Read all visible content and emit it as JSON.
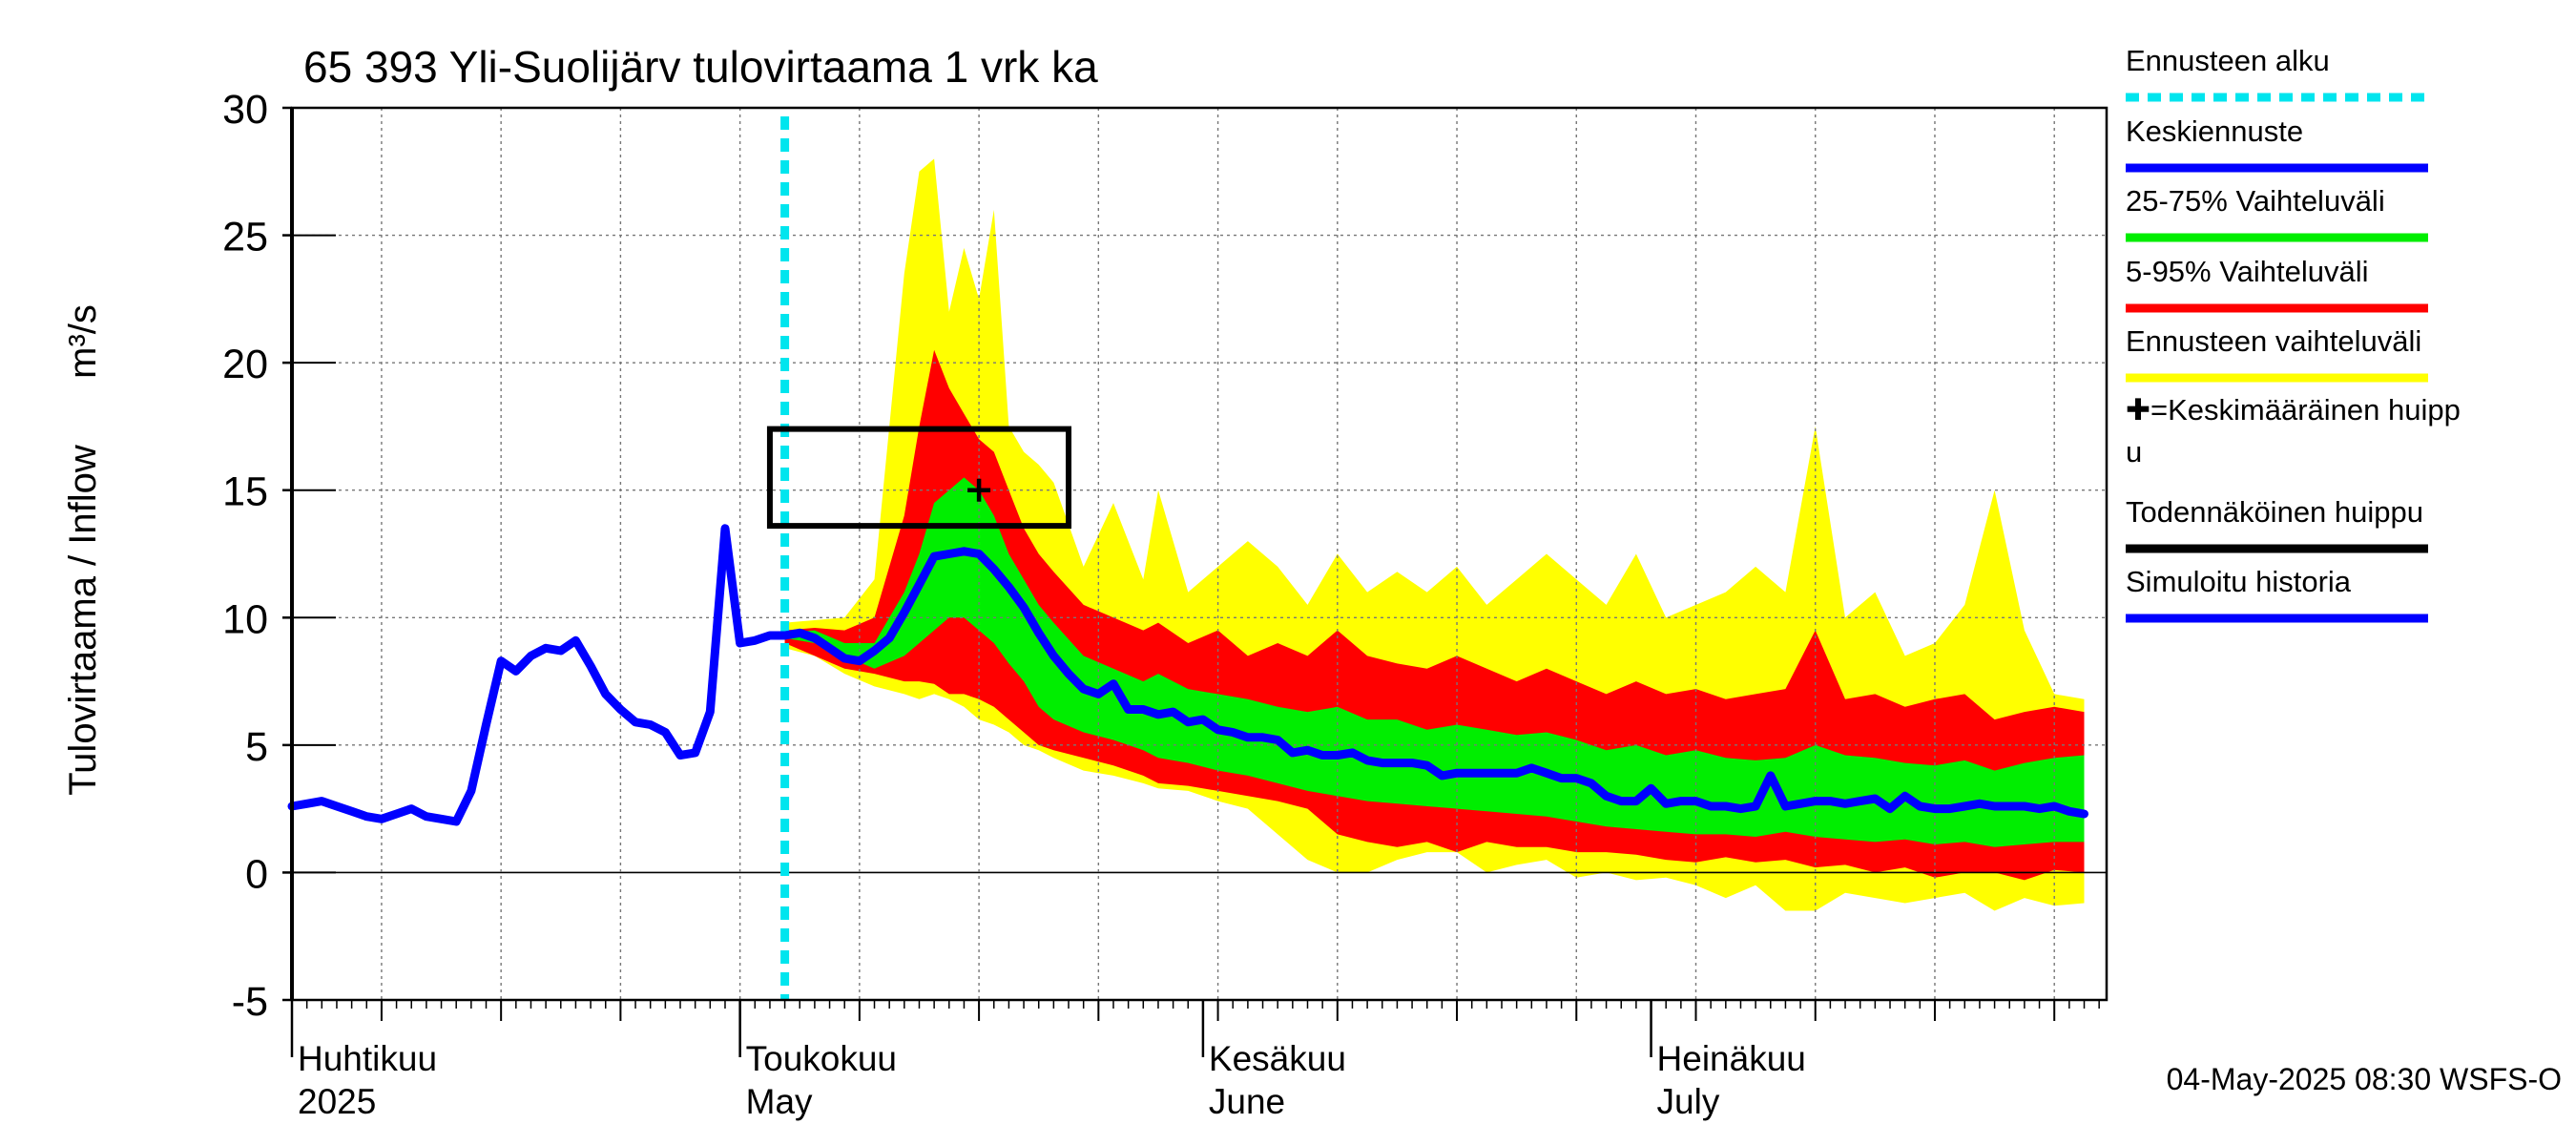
{
  "title": "65 393 Yli-Suolijärv tulovirtaama 1 vrk ka",
  "y_axis_label": "Tulovirtaama / Inflow",
  "y_axis_unit": "m³/s",
  "footer": "04-May-2025 08:30 WSFS-O",
  "colors": {
    "forecast_start": "#00e5ee",
    "mean_forecast": "#0000ff",
    "band_25_75": "#00ee00",
    "band_5_95": "#ff0000",
    "band_full": "#ffff00",
    "peak_marker": "#000000",
    "peak_box": "#000000",
    "history": "#0000ff"
  },
  "x_axis": {
    "months": [
      {
        "fi": "Huhtikuu",
        "en": "2025",
        "day": 0
      },
      {
        "fi": "Toukokuu",
        "en": "May",
        "day": 30
      },
      {
        "fi": "Kesäkuu",
        "en": "June",
        "day": 61
      },
      {
        "fi": "Heinäkuu",
        "en": "July",
        "day": 91
      }
    ]
  },
  "legend": [
    {
      "label": "Ennusteen alku",
      "style": "dotted",
      "color": "#00e5ee"
    },
    {
      "label": "Keskiennuste",
      "style": "line",
      "color": "#0000ff"
    },
    {
      "label": "25-75% Vaihteluväli",
      "style": "line",
      "color": "#00ee00"
    },
    {
      "label": "5-95% Vaihteluväli",
      "style": "line",
      "color": "#ff0000"
    },
    {
      "label": "Ennusteen vaihteluväli",
      "style": "line",
      "color": "#ffff00"
    },
    {
      "label": "✚=Keskimääräinen huipp",
      "label2": "u",
      "style": "none",
      "color": "#000000"
    },
    {
      "label": "Todennäköinen huippu",
      "style": "line",
      "color": "#000000"
    },
    {
      "label": "Simuloitu historia",
      "style": "line",
      "color": "#0000ff"
    }
  ],
  "chart_data": {
    "type": "area",
    "title": "65 393 Yli-Suolijärv tulovirtaama 1 vrk ka",
    "ylabel": "Tulovirtaama / Inflow m³/s",
    "ylim": [
      -5,
      30
    ],
    "yticks": [
      -5,
      0,
      5,
      10,
      15,
      20,
      25,
      30
    ],
    "x_start": "2025-04-01",
    "x_end": "2025-07-31",
    "grid": true,
    "forecast_start": "2025-05-04",
    "mean_peak": {
      "date": "2025-05-17",
      "value": 15
    },
    "probable_peak_range": {
      "date_from": "2025-05-03",
      "date_to": "2025-05-23",
      "value_low": 13.6,
      "value_high": 17.4
    },
    "series": [
      {
        "name": "Simuloitu historia",
        "points": [
          [
            "2025-04-01",
            2.6
          ],
          [
            "2025-04-02",
            2.7
          ],
          [
            "2025-04-03",
            2.8
          ],
          [
            "2025-04-04",
            2.6
          ],
          [
            "2025-04-05",
            2.4
          ],
          [
            "2025-04-06",
            2.2
          ],
          [
            "2025-04-07",
            2.1
          ],
          [
            "2025-04-08",
            2.3
          ],
          [
            "2025-04-09",
            2.5
          ],
          [
            "2025-04-10",
            2.2
          ],
          [
            "2025-04-11",
            2.1
          ],
          [
            "2025-04-12",
            2.0
          ],
          [
            "2025-04-13",
            3.2
          ],
          [
            "2025-04-14",
            5.8
          ],
          [
            "2025-04-15",
            8.3
          ],
          [
            "2025-04-16",
            7.9
          ],
          [
            "2025-04-17",
            8.5
          ],
          [
            "2025-04-18",
            8.8
          ],
          [
            "2025-04-19",
            8.7
          ],
          [
            "2025-04-20",
            9.1
          ],
          [
            "2025-04-21",
            8.1
          ],
          [
            "2025-04-22",
            7.0
          ],
          [
            "2025-04-23",
            6.4
          ],
          [
            "2025-04-24",
            5.9
          ],
          [
            "2025-04-25",
            5.8
          ],
          [
            "2025-04-26",
            5.5
          ],
          [
            "2025-04-27",
            4.6
          ],
          [
            "2025-04-28",
            4.7
          ],
          [
            "2025-04-29",
            6.3
          ],
          [
            "2025-04-30",
            13.5
          ],
          [
            "2025-05-01",
            9.0
          ],
          [
            "2025-05-02",
            9.1
          ],
          [
            "2025-05-03",
            9.3
          ],
          [
            "2025-05-04",
            9.3
          ]
        ]
      },
      {
        "name": "Keskiennuste",
        "points": [
          [
            "2025-05-04",
            9.3
          ],
          [
            "2025-05-05",
            9.4
          ],
          [
            "2025-05-06",
            9.2
          ],
          [
            "2025-05-07",
            8.8
          ],
          [
            "2025-05-08",
            8.4
          ],
          [
            "2025-05-09",
            8.3
          ],
          [
            "2025-05-10",
            8.7
          ],
          [
            "2025-05-11",
            9.2
          ],
          [
            "2025-05-12",
            10.2
          ],
          [
            "2025-05-13",
            11.3
          ],
          [
            "2025-05-14",
            12.4
          ],
          [
            "2025-05-15",
            12.5
          ],
          [
            "2025-05-16",
            12.6
          ],
          [
            "2025-05-17",
            12.5
          ],
          [
            "2025-05-18",
            11.9
          ],
          [
            "2025-05-19",
            11.2
          ],
          [
            "2025-05-20",
            10.4
          ],
          [
            "2025-05-21",
            9.4
          ],
          [
            "2025-05-22",
            8.5
          ],
          [
            "2025-05-23",
            7.8
          ],
          [
            "2025-05-24",
            7.2
          ],
          [
            "2025-05-25",
            7.0
          ],
          [
            "2025-05-26",
            7.4
          ],
          [
            "2025-05-27",
            6.4
          ],
          [
            "2025-05-28",
            6.4
          ],
          [
            "2025-05-29",
            6.2
          ],
          [
            "2025-05-30",
            6.3
          ],
          [
            "2025-05-31",
            5.9
          ],
          [
            "2025-06-01",
            6.0
          ],
          [
            "2025-06-02",
            5.6
          ],
          [
            "2025-06-03",
            5.5
          ],
          [
            "2025-06-04",
            5.3
          ],
          [
            "2025-06-05",
            5.3
          ],
          [
            "2025-06-06",
            5.2
          ],
          [
            "2025-06-07",
            4.7
          ],
          [
            "2025-06-08",
            4.8
          ],
          [
            "2025-06-09",
            4.6
          ],
          [
            "2025-06-10",
            4.6
          ],
          [
            "2025-06-11",
            4.7
          ],
          [
            "2025-06-12",
            4.4
          ],
          [
            "2025-06-13",
            4.3
          ],
          [
            "2025-06-14",
            4.3
          ],
          [
            "2025-06-15",
            4.3
          ],
          [
            "2025-06-16",
            4.2
          ],
          [
            "2025-06-17",
            3.8
          ],
          [
            "2025-06-18",
            3.9
          ],
          [
            "2025-06-19",
            3.9
          ],
          [
            "2025-06-20",
            3.9
          ],
          [
            "2025-06-21",
            3.9
          ],
          [
            "2025-06-22",
            3.9
          ],
          [
            "2025-06-23",
            4.1
          ],
          [
            "2025-06-24",
            3.9
          ],
          [
            "2025-06-25",
            3.7
          ],
          [
            "2025-06-26",
            3.7
          ],
          [
            "2025-06-27",
            3.5
          ],
          [
            "2025-06-28",
            3.0
          ],
          [
            "2025-06-29",
            2.8
          ],
          [
            "2025-06-30",
            2.8
          ],
          [
            "2025-07-01",
            3.3
          ],
          [
            "2025-07-02",
            2.7
          ],
          [
            "2025-07-03",
            2.8
          ],
          [
            "2025-07-04",
            2.8
          ],
          [
            "2025-07-05",
            2.6
          ],
          [
            "2025-07-06",
            2.6
          ],
          [
            "2025-07-07",
            2.5
          ],
          [
            "2025-07-08",
            2.6
          ],
          [
            "2025-07-09",
            3.8
          ],
          [
            "2025-07-10",
            2.6
          ],
          [
            "2025-07-11",
            2.7
          ],
          [
            "2025-07-12",
            2.8
          ],
          [
            "2025-07-13",
            2.8
          ],
          [
            "2025-07-14",
            2.7
          ],
          [
            "2025-07-15",
            2.8
          ],
          [
            "2025-07-16",
            2.9
          ],
          [
            "2025-07-17",
            2.5
          ],
          [
            "2025-07-18",
            3.0
          ],
          [
            "2025-07-19",
            2.6
          ],
          [
            "2025-07-20",
            2.5
          ],
          [
            "2025-07-21",
            2.5
          ],
          [
            "2025-07-22",
            2.6
          ],
          [
            "2025-07-23",
            2.7
          ],
          [
            "2025-07-24",
            2.6
          ],
          [
            "2025-07-25",
            2.6
          ],
          [
            "2025-07-26",
            2.6
          ],
          [
            "2025-07-27",
            2.5
          ],
          [
            "2025-07-28",
            2.6
          ],
          [
            "2025-07-29",
            2.4
          ],
          [
            "2025-07-30",
            2.3
          ]
        ]
      }
    ],
    "bands": [
      {
        "name": "Ennusteen vaihteluväli",
        "dates": [
          "2025-05-04",
          "2025-05-06",
          "2025-05-08",
          "2025-05-10",
          "2025-05-12",
          "2025-05-13",
          "2025-05-14",
          "2025-05-15",
          "2025-05-16",
          "2025-05-17",
          "2025-05-18",
          "2025-05-19",
          "2025-05-20",
          "2025-05-21",
          "2025-05-22",
          "2025-05-24",
          "2025-05-26",
          "2025-05-28",
          "2025-05-29",
          "2025-05-31",
          "2025-06-02",
          "2025-06-04",
          "2025-06-06",
          "2025-06-08",
          "2025-06-10",
          "2025-06-12",
          "2025-06-14",
          "2025-06-16",
          "2025-06-18",
          "2025-06-20",
          "2025-06-22",
          "2025-06-24",
          "2025-06-26",
          "2025-06-28",
          "2025-06-30",
          "2025-07-02",
          "2025-07-04",
          "2025-07-06",
          "2025-07-08",
          "2025-07-10",
          "2025-07-12",
          "2025-07-14",
          "2025-07-16",
          "2025-07-18",
          "2025-07-20",
          "2025-07-22",
          "2025-07-24",
          "2025-07-26",
          "2025-07-28",
          "2025-07-30"
        ],
        "upper": [
          9.8,
          9.9,
          10.0,
          11.5,
          23.5,
          27.5,
          28.0,
          22.0,
          24.5,
          22.5,
          26.0,
          17.5,
          16.5,
          16.0,
          15.3,
          12.0,
          14.5,
          11.5,
          15.0,
          11.0,
          12.0,
          13.0,
          12.0,
          10.5,
          12.5,
          11.0,
          11.8,
          11.0,
          12.0,
          10.5,
          11.5,
          12.5,
          11.5,
          10.5,
          12.5,
          10.0,
          10.5,
          11.0,
          12.0,
          11.0,
          17.5,
          10.0,
          11.0,
          8.5,
          9.0,
          10.5,
          15.0,
          9.5,
          7.0,
          6.8
        ],
        "lower": [
          8.8,
          8.5,
          7.8,
          7.3,
          7.0,
          6.8,
          7.0,
          6.8,
          6.5,
          6.0,
          5.8,
          5.5,
          5.0,
          4.8,
          4.5,
          4.0,
          3.8,
          3.5,
          3.3,
          3.2,
          2.8,
          2.5,
          1.5,
          0.5,
          0.0,
          0.0,
          0.5,
          0.8,
          0.8,
          0.0,
          0.3,
          0.5,
          -0.2,
          0.0,
          -0.3,
          -0.2,
          -0.5,
          -1.0,
          -0.5,
          -1.5,
          -1.5,
          -0.8,
          -1.0,
          -1.2,
          -1.0,
          -0.8,
          -1.5,
          -1.0,
          -1.3,
          -1.2
        ]
      },
      {
        "name": "5-95% Vaihteluväli",
        "dates": [
          "2025-05-04",
          "2025-05-06",
          "2025-05-08",
          "2025-05-10",
          "2025-05-12",
          "2025-05-13",
          "2025-05-14",
          "2025-05-15",
          "2025-05-16",
          "2025-05-17",
          "2025-05-18",
          "2025-05-19",
          "2025-05-20",
          "2025-05-21",
          "2025-05-22",
          "2025-05-24",
          "2025-05-26",
          "2025-05-28",
          "2025-05-29",
          "2025-05-31",
          "2025-06-02",
          "2025-06-04",
          "2025-06-06",
          "2025-06-08",
          "2025-06-10",
          "2025-06-12",
          "2025-06-14",
          "2025-06-16",
          "2025-06-18",
          "2025-06-20",
          "2025-06-22",
          "2025-06-24",
          "2025-06-26",
          "2025-06-28",
          "2025-06-30",
          "2025-07-02",
          "2025-07-04",
          "2025-07-06",
          "2025-07-08",
          "2025-07-10",
          "2025-07-12",
          "2025-07-14",
          "2025-07-16",
          "2025-07-18",
          "2025-07-20",
          "2025-07-22",
          "2025-07-24",
          "2025-07-26",
          "2025-07-28",
          "2025-07-30"
        ],
        "upper": [
          9.5,
          9.6,
          9.5,
          10.0,
          14.0,
          17.5,
          20.5,
          19.0,
          18.0,
          17.0,
          16.5,
          15.0,
          13.5,
          12.5,
          11.8,
          10.5,
          10.0,
          9.5,
          9.8,
          9.0,
          9.5,
          8.5,
          9.0,
          8.5,
          9.5,
          8.5,
          8.2,
          8.0,
          8.5,
          8.0,
          7.5,
          8.0,
          7.5,
          7.0,
          7.5,
          7.0,
          7.2,
          6.8,
          7.0,
          7.2,
          9.5,
          6.8,
          7.0,
          6.5,
          6.8,
          7.0,
          6.0,
          6.3,
          6.5,
          6.3
        ],
        "lower": [
          9.0,
          8.5,
          8.0,
          7.8,
          7.5,
          7.5,
          7.4,
          7.0,
          7.0,
          6.8,
          6.5,
          6.0,
          5.5,
          5.0,
          4.8,
          4.5,
          4.2,
          3.8,
          3.5,
          3.4,
          3.2,
          3.0,
          2.8,
          2.5,
          1.5,
          1.2,
          1.0,
          1.2,
          0.8,
          1.2,
          1.0,
          1.0,
          0.8,
          0.8,
          0.7,
          0.5,
          0.4,
          0.6,
          0.4,
          0.5,
          0.2,
          0.3,
          0.0,
          0.2,
          -0.2,
          0.0,
          0.0,
          -0.3,
          0.1,
          0.0
        ]
      },
      {
        "name": "25-75% Vaihteluväli",
        "dates": [
          "2025-05-04",
          "2025-05-06",
          "2025-05-08",
          "2025-05-10",
          "2025-05-12",
          "2025-05-13",
          "2025-05-14",
          "2025-05-15",
          "2025-05-16",
          "2025-05-17",
          "2025-05-18",
          "2025-05-19",
          "2025-05-20",
          "2025-05-21",
          "2025-05-22",
          "2025-05-24",
          "2025-05-26",
          "2025-05-28",
          "2025-05-29",
          "2025-05-31",
          "2025-06-02",
          "2025-06-04",
          "2025-06-06",
          "2025-06-08",
          "2025-06-10",
          "2025-06-12",
          "2025-06-14",
          "2025-06-16",
          "2025-06-18",
          "2025-06-20",
          "2025-06-22",
          "2025-06-24",
          "2025-06-26",
          "2025-06-28",
          "2025-06-30",
          "2025-07-02",
          "2025-07-04",
          "2025-07-06",
          "2025-07-08",
          "2025-07-10",
          "2025-07-12",
          "2025-07-14",
          "2025-07-16",
          "2025-07-18",
          "2025-07-20",
          "2025-07-22",
          "2025-07-24",
          "2025-07-26",
          "2025-07-28",
          "2025-07-30"
        ],
        "upper": [
          9.4,
          9.5,
          9.0,
          9.0,
          11.0,
          12.5,
          14.5,
          15.0,
          15.5,
          15.0,
          14.0,
          12.5,
          11.5,
          10.5,
          9.8,
          8.5,
          8.0,
          7.5,
          7.8,
          7.2,
          7.0,
          6.8,
          6.5,
          6.3,
          6.5,
          6.0,
          6.0,
          5.6,
          5.8,
          5.6,
          5.4,
          5.5,
          5.2,
          4.8,
          5.0,
          4.6,
          4.8,
          4.5,
          4.4,
          4.5,
          5.0,
          4.6,
          4.5,
          4.3,
          4.2,
          4.4,
          4.0,
          4.3,
          4.5,
          4.6
        ],
        "lower": [
          9.2,
          9.0,
          8.5,
          8.0,
          8.5,
          9.0,
          9.5,
          10.0,
          10.0,
          9.5,
          9.0,
          8.2,
          7.5,
          6.5,
          6.0,
          5.5,
          5.2,
          4.8,
          4.5,
          4.3,
          4.0,
          3.8,
          3.5,
          3.2,
          3.0,
          2.8,
          2.7,
          2.6,
          2.5,
          2.4,
          2.3,
          2.2,
          2.0,
          1.8,
          1.7,
          1.6,
          1.5,
          1.5,
          1.4,
          1.6,
          1.4,
          1.3,
          1.2,
          1.3,
          1.1,
          1.2,
          1.0,
          1.1,
          1.2,
          1.2
        ]
      }
    ]
  }
}
